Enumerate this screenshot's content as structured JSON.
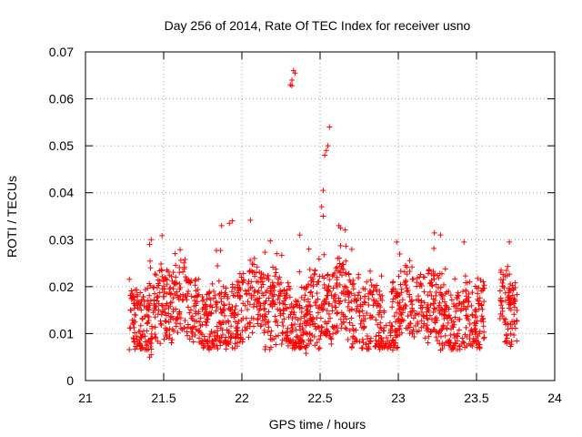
{
  "chart_data": {
    "type": "scatter",
    "title": "Day 256 of 2014, Rate Of TEC Index for receiver usno",
    "xlabel": "GPS time / hours",
    "ylabel": "ROTI / TECUs",
    "xlim": [
      21,
      24
    ],
    "ylim": [
      0,
      0.07
    ],
    "xticks": [
      21,
      21.5,
      22,
      22.5,
      23,
      23.5,
      24
    ],
    "xtick_labels": [
      "21",
      "21.5",
      "22",
      "22.5",
      "23",
      "23.5",
      "24"
    ],
    "yticks": [
      0,
      0.01,
      0.02,
      0.03,
      0.04,
      0.05,
      0.06,
      0.07
    ],
    "ytick_labels": [
      "0",
      "0.01",
      "0.02",
      "0.03",
      "0.04",
      "0.05",
      "0.06",
      "0.07"
    ],
    "grid": true,
    "marker": "+",
    "color": "#ff0000",
    "series": [
      {
        "name": "ROTI",
        "x_range": [
          21.28,
          23.76
        ],
        "gap": [
          23.55,
          23.65
        ],
        "typical_range": [
          0.007,
          0.022
        ],
        "approx_count": 1800,
        "notable_points": [
          {
            "x": 22.31,
            "y": 0.063
          },
          {
            "x": 22.32,
            "y": 0.064
          },
          {
            "x": 22.33,
            "y": 0.066
          },
          {
            "x": 22.34,
            "y": 0.0655
          },
          {
            "x": 22.32,
            "y": 0.0628
          },
          {
            "x": 22.56,
            "y": 0.054
          },
          {
            "x": 22.55,
            "y": 0.05
          },
          {
            "x": 22.54,
            "y": 0.049
          },
          {
            "x": 22.53,
            "y": 0.048
          },
          {
            "x": 22.52,
            "y": 0.0405
          },
          {
            "x": 22.51,
            "y": 0.037
          },
          {
            "x": 22.52,
            "y": 0.035
          },
          {
            "x": 21.94,
            "y": 0.034
          },
          {
            "x": 21.92,
            "y": 0.0335
          },
          {
            "x": 21.87,
            "y": 0.033
          },
          {
            "x": 22.62,
            "y": 0.033
          },
          {
            "x": 22.63,
            "y": 0.0325
          },
          {
            "x": 22.37,
            "y": 0.031
          },
          {
            "x": 21.42,
            "y": 0.03
          },
          {
            "x": 21.41,
            "y": 0.029
          },
          {
            "x": 23.71,
            "y": 0.0295
          },
          {
            "x": 22.99,
            "y": 0.0295
          },
          {
            "x": 23.42,
            "y": 0.0295
          },
          {
            "x": 21.41,
            "y": 0.005
          },
          {
            "x": 21.42,
            "y": 0.0055
          },
          {
            "x": 22.41,
            "y": 0.0058
          },
          {
            "x": 23.27,
            "y": 0.0065
          }
        ]
      }
    ]
  }
}
